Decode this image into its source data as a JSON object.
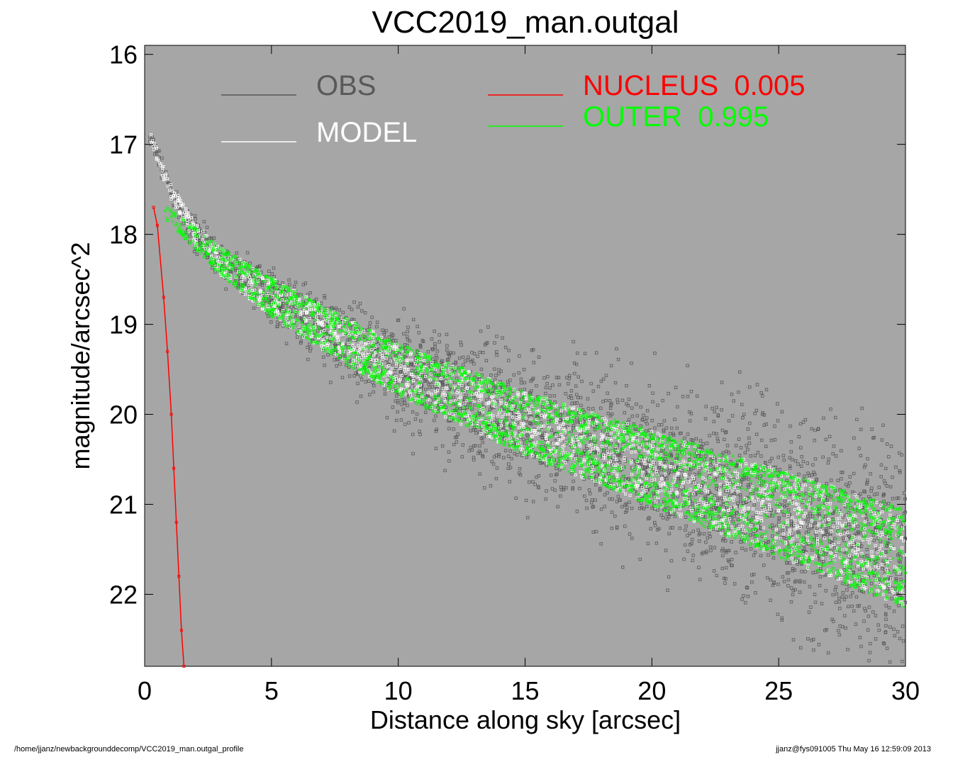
{
  "chart_data": {
    "type": "scatter",
    "title": "VCC2019_man.outgal",
    "xlabel": "Distance along sky [arcsec]",
    "ylabel": "magnitude/arcsec^2",
    "xlim": [
      0,
      30
    ],
    "ylim": [
      22.8,
      15.9
    ],
    "y_inverted": true,
    "xticks": [
      "0",
      "5",
      "10",
      "15",
      "20",
      "25",
      "30"
    ],
    "yticks": [
      "16",
      "17",
      "18",
      "19",
      "20",
      "21",
      "22"
    ],
    "grid": false,
    "legend_position": "top",
    "background_color": "#a6a6a6",
    "legend": [
      {
        "label": "OBS",
        "color": "#595959"
      },
      {
        "label": "MODEL",
        "color": "#ffffff"
      },
      {
        "label": "NUCLEUS  0.005",
        "color": "#ff0000"
      },
      {
        "label": "OUTER  0.995",
        "color": "#00ff00"
      }
    ],
    "series": [
      {
        "name": "OBS",
        "color": "#595959",
        "profile": {
          "x": [
            0.2,
            1,
            2,
            3,
            5,
            8,
            10,
            15,
            20,
            25,
            30
          ],
          "y": [
            16.9,
            17.5,
            18.0,
            18.3,
            18.7,
            19.2,
            19.5,
            20.1,
            20.6,
            21.1,
            21.6
          ]
        },
        "scatter_halfwidth": {
          "x": [
            0,
            5,
            15,
            30
          ],
          "y": [
            0.05,
            0.2,
            0.5,
            0.85
          ]
        }
      },
      {
        "name": "MODEL",
        "color": "#ffffff",
        "profile": {
          "x": [
            0.2,
            1,
            2,
            3,
            5,
            8,
            10,
            15,
            20,
            25,
            30
          ],
          "y": [
            16.9,
            17.5,
            18.0,
            18.3,
            18.7,
            19.2,
            19.5,
            20.1,
            20.6,
            21.1,
            21.6
          ]
        },
        "band_halfwidth": {
          "x": [
            0,
            5,
            15,
            30
          ],
          "y": [
            0.05,
            0.22,
            0.35,
            0.55
          ]
        }
      },
      {
        "name": "NUCLEUS  0.005",
        "color": "#ff0000",
        "x": [
          0.35,
          0.5,
          0.75,
          0.9,
          1.05,
          1.15,
          1.25,
          1.35,
          1.45,
          1.55
        ],
        "y": [
          17.7,
          17.9,
          18.7,
          19.3,
          20.0,
          20.6,
          21.2,
          21.8,
          22.4,
          22.8
        ]
      },
      {
        "name": "OUTER  0.995",
        "color": "#00ff00",
        "profile": {
          "x": [
            0.8,
            1.2,
            2,
            3,
            5,
            8,
            10,
            15,
            20,
            25,
            30
          ],
          "y": [
            17.75,
            17.85,
            18.05,
            18.3,
            18.7,
            19.2,
            19.5,
            20.1,
            20.6,
            21.1,
            21.6
          ]
        },
        "band_halfwidth": {
          "x": [
            0,
            5,
            15,
            30
          ],
          "y": [
            0.05,
            0.22,
            0.35,
            0.55
          ]
        }
      }
    ]
  },
  "footer": {
    "left": "/home/jjanz/newbackgrounddecomp/VCC2019_man.outgal_profile",
    "right": "jjanz@fys091005  Thu May 16 12:59:09 2013"
  }
}
